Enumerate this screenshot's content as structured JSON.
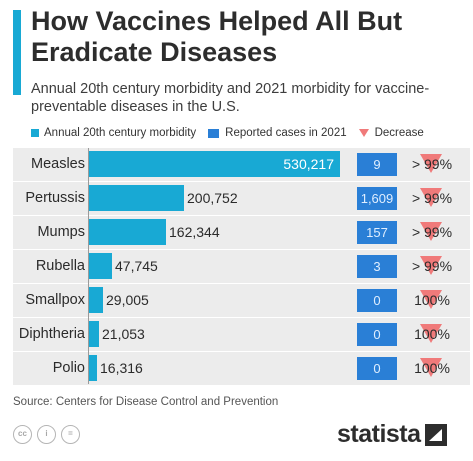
{
  "title": "How Vaccines Helped All But Eradicate Diseases",
  "subtitle": "Annual 20th century morbidity and 2021 morbidity for vaccine-preventable diseases in the U.S.",
  "legend": {
    "morbidity": "Annual 20th century morbidity",
    "reported": "Reported cases in 2021",
    "decrease": "Decrease"
  },
  "source": "Source: Centers for Disease Control and Prevention",
  "brand": "statista",
  "colors": {
    "bar": "#18a9d4",
    "reported": "#2a7fd6",
    "decrease": "#f07a7a"
  },
  "chart_data": {
    "type": "bar",
    "title": "How Vaccines Helped All But Eradicate Diseases",
    "subtitle": "Annual 20th century morbidity and 2021 morbidity for vaccine-preventable diseases in the U.S.",
    "categories": [
      "Measles",
      "Pertussis",
      "Mumps",
      "Rubella",
      "Smallpox",
      "Diphtheria",
      "Polio"
    ],
    "series": [
      {
        "name": "Annual 20th century morbidity",
        "values": [
          530217,
          200752,
          162344,
          47745,
          29005,
          21053,
          16316
        ],
        "labels": [
          "530,217",
          "200,752",
          "162,344",
          "47,745",
          "29,005",
          "21,053",
          "16,316"
        ]
      },
      {
        "name": "Reported cases in 2021",
        "values": [
          9,
          1609,
          157,
          3,
          0,
          0,
          0
        ],
        "labels": [
          "9",
          "1,609",
          "157",
          "3",
          "0",
          "0",
          "0"
        ]
      }
    ],
    "decrease": [
      "> 99%",
      "> 99%",
      "> 99%",
      "> 99%",
      "100%",
      "100%",
      "100%"
    ],
    "xlim": [
      0,
      530217
    ],
    "legend_position": "top"
  }
}
